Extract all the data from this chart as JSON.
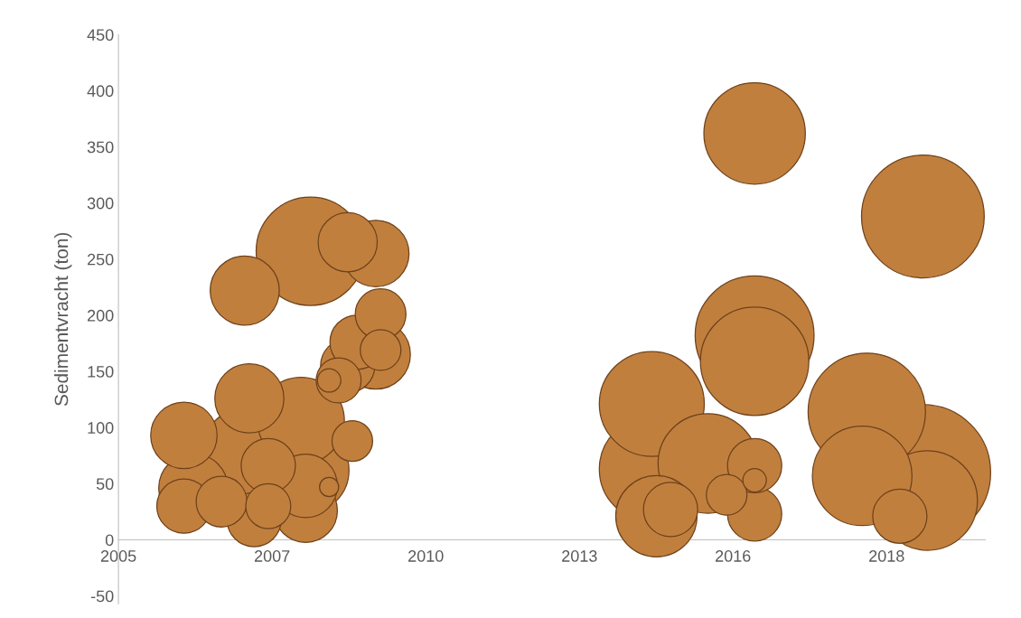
{
  "chart_data": {
    "type": "bubble",
    "ylabel": "Sedimentvracht (ton)",
    "x": [
      "2006-05",
      "2007-06",
      "2008-08",
      "2009-04",
      "2009-10",
      "2009-11",
      "2009-06",
      "2009-10",
      "2009-11",
      "2009-04",
      "2008-12",
      "2009-02",
      "2007-07",
      "2007-06",
      "2008-06",
      "2009-05",
      "2008-07",
      "2008-07",
      "2008-12",
      "2006-07",
      "2006-05",
      "2007-01",
      "2007-08",
      "2008-07",
      "2007-11",
      "2007-11",
      "2016-07",
      "2019-07",
      "2016-07",
      "2016-07",
      "2014-09",
      "2014-09",
      "2014-10",
      "2015-01",
      "2015-09",
      "2016-07",
      "2016-07",
      "2016-01",
      "2016-07",
      "2018-07",
      "2018-06",
      "2019-07",
      "2019-02",
      "2019-08"
    ],
    "values": [
      93,
      222,
      257,
      265,
      255,
      201,
      176,
      165,
      169,
      155,
      142,
      142,
      126,
      78,
      106,
      88,
      62,
      48,
      47,
      46,
      30,
      34,
      18,
      26,
      30,
      66,
      362,
      288,
      182,
      159,
      121,
      63,
      21,
      27,
      68,
      66,
      53,
      40,
      23,
      114,
      57,
      60,
      21,
      35
    ],
    "sizes": [
      0.24,
      0.26,
      0.64,
      0.19,
      0.24,
      0.14,
      0.16,
      0.26,
      0.09,
      0.16,
      0.03,
      0.11,
      0.26,
      0.41,
      0.41,
      0.09,
      0.41,
      0.22,
      0.02,
      0.26,
      0.16,
      0.14,
      0.16,
      0.22,
      0.11,
      0.16,
      0.56,
      0.82,
      0.77,
      0.64,
      0.6,
      0.6,
      0.36,
      0.16,
      0.54,
      0.16,
      0.03,
      0.09,
      0.16,
      0.75,
      0.54,
      1,
      0.16,
      0.54
    ],
    "color": "#c17f3e",
    "xlim": [
      "2005-03-01",
      "2020-08-10"
    ],
    "xticks": [
      {
        "value": "2005-03-01",
        "label": "2005"
      },
      {
        "value": "2007-11-26",
        "label": "2007"
      },
      {
        "value": "2010-08-22",
        "label": "2010"
      },
      {
        "value": "2013-05-18",
        "label": "2013"
      },
      {
        "value": "2016-02-11",
        "label": "2016"
      },
      {
        "value": "2018-11-07",
        "label": "2018"
      }
    ],
    "ylim": [
      -57,
      450
    ],
    "yticks": [
      -50,
      0,
      50,
      100,
      150,
      200,
      250,
      300,
      350,
      400,
      450
    ],
    "grid": false,
    "legend": false
  }
}
